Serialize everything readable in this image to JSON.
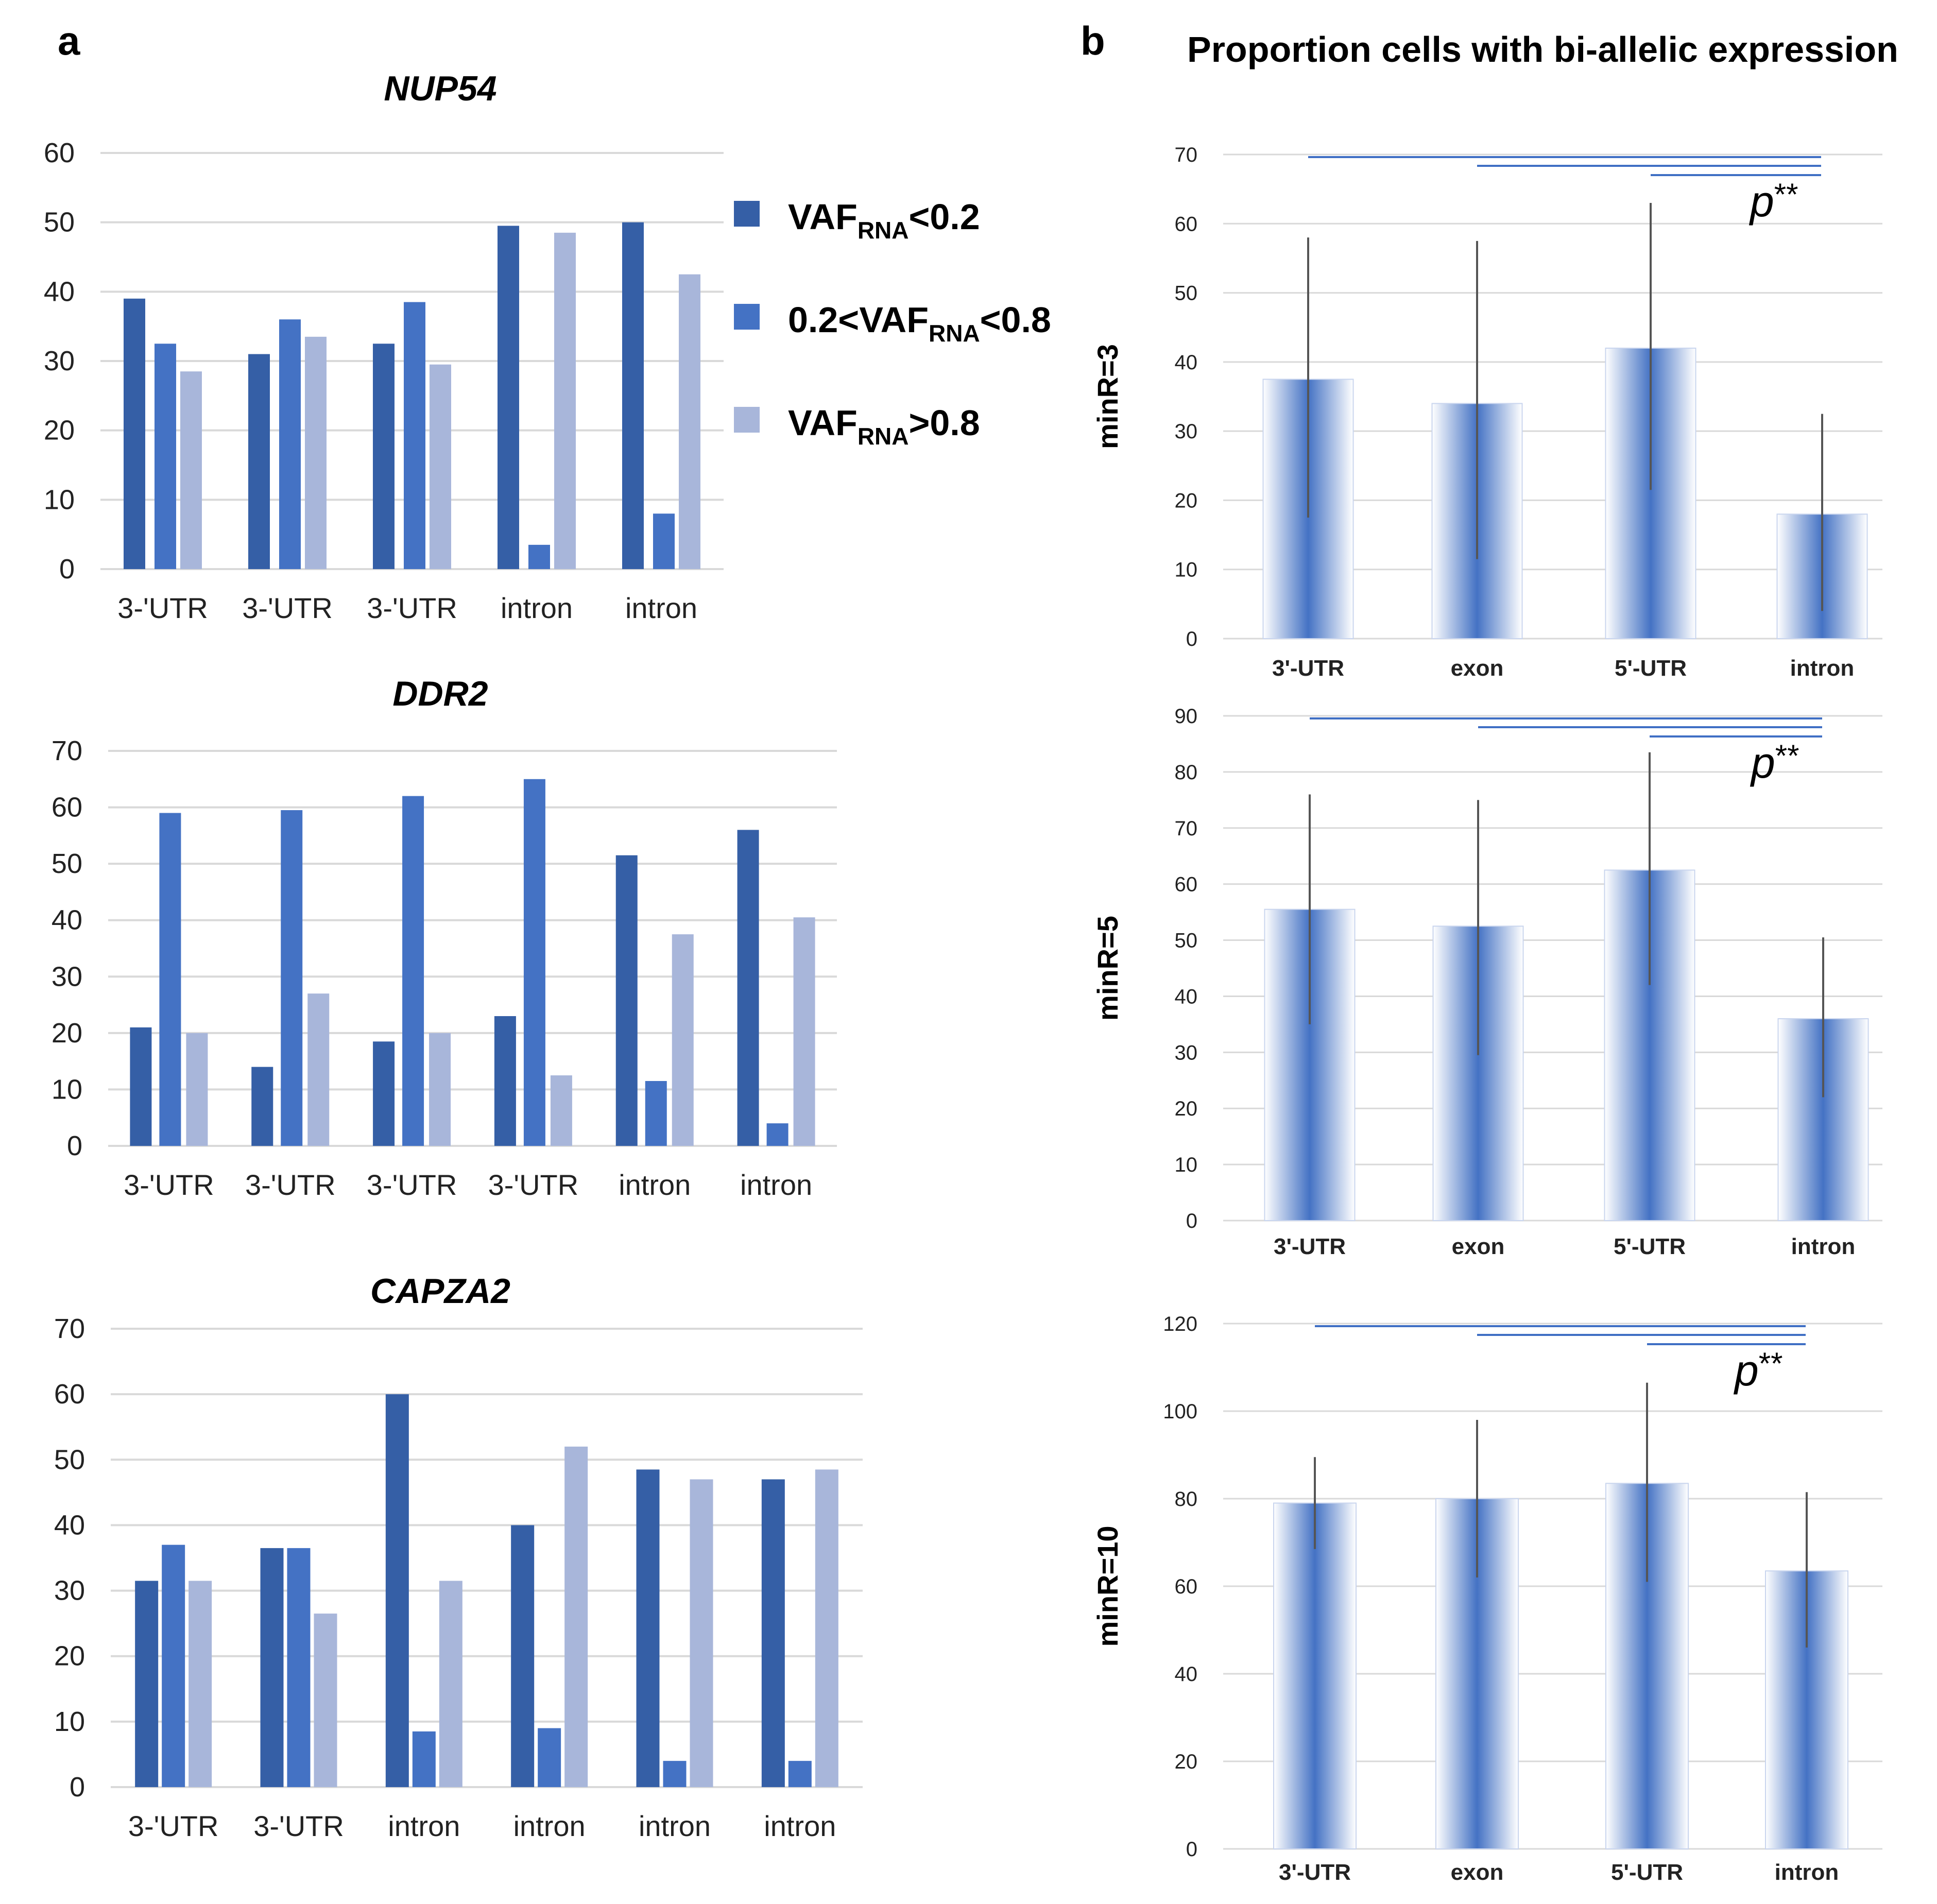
{
  "panel_a_label": "a",
  "panel_b_label": "b",
  "panel_b_title": "Proportion cells with bi-allelic expression",
  "legend": [
    {
      "pre": "VAF",
      "sub": "RNA",
      "post": "<0.2",
      "color": "#355fa6"
    },
    {
      "pre": "0.2<VAF",
      "sub": "RNA",
      "post": "<0.8",
      "color": "#4472c4"
    },
    {
      "pre": "VAF",
      "sub": "RNA",
      "post": ">0.8",
      "color": "#a8b6da"
    }
  ],
  "chart_data": [
    {
      "id": "nup54",
      "type": "bar",
      "title": "NUP54",
      "categories": [
        "3-'UTR",
        "3-'UTR",
        "3-'UTR",
        "intron",
        "intron"
      ],
      "ylim": [
        0,
        60
      ],
      "yticks": [
        0,
        10,
        20,
        30,
        40,
        50,
        60
      ],
      "series": [
        {
          "name": "VAFRNA<0.2",
          "color": "#355fa6",
          "values": [
            39,
            31,
            32.5,
            49.5,
            50
          ]
        },
        {
          "name": "0.2<VAFRNA<0.8",
          "color": "#4472c4",
          "values": [
            32.5,
            36,
            38.5,
            3.5,
            8
          ]
        },
        {
          "name": "VAFRNA>0.8",
          "color": "#a8b6da",
          "values": [
            28.5,
            33.5,
            29.5,
            48.5,
            42.5
          ]
        }
      ]
    },
    {
      "id": "ddr2",
      "type": "bar",
      "title": "DDR2",
      "categories": [
        "3-'UTR",
        "3-'UTR",
        "3-'UTR",
        "3-'UTR",
        "intron",
        "intron"
      ],
      "ylim": [
        0,
        70
      ],
      "yticks": [
        0,
        10,
        20,
        30,
        40,
        50,
        60,
        70
      ],
      "series": [
        {
          "name": "VAFRNA<0.2",
          "color": "#355fa6",
          "values": [
            21,
            14,
            18.5,
            23,
            51.5,
            56
          ]
        },
        {
          "name": "0.2<VAFRNA<0.8",
          "color": "#4472c4",
          "values": [
            59,
            59.5,
            62,
            65,
            11.5,
            4
          ]
        },
        {
          "name": "VAFRNA>0.8",
          "color": "#a8b6da",
          "values": [
            20,
            27,
            20,
            12.5,
            37.5,
            40.5
          ]
        }
      ]
    },
    {
      "id": "capza2",
      "type": "bar",
      "title": "CAPZA2",
      "categories": [
        "3-'UTR",
        "3-'UTR",
        "intron",
        "intron",
        "intron",
        "intron"
      ],
      "ylim": [
        0,
        70
      ],
      "yticks": [
        0,
        10,
        20,
        30,
        40,
        50,
        60,
        70
      ],
      "series": [
        {
          "name": "VAFRNA<0.2",
          "color": "#355fa6",
          "values": [
            31.5,
            36.5,
            60,
            40,
            48.5,
            47
          ]
        },
        {
          "name": "0.2<VAFRNA<0.8",
          "color": "#4472c4",
          "values": [
            37,
            36.5,
            8.5,
            9,
            4,
            4
          ]
        },
        {
          "name": "VAFRNA>0.8",
          "color": "#a8b6da",
          "values": [
            31.5,
            26.5,
            31.5,
            52,
            47,
            48.5
          ]
        }
      ]
    },
    {
      "id": "minr3",
      "type": "bar",
      "ylabel": "minR=3",
      "categories": [
        "3'-UTR",
        "exon",
        "5'-UTR",
        "intron"
      ],
      "ylim": [
        0,
        70
      ],
      "yticks": [
        0,
        10,
        20,
        30,
        40,
        50,
        60,
        70
      ],
      "values": [
        37.5,
        34,
        42,
        18
      ],
      "error_low": [
        17.5,
        11.5,
        21.5,
        4
      ],
      "error_high": [
        58,
        57.5,
        63,
        32.5
      ],
      "significance": "p**"
    },
    {
      "id": "minr5",
      "type": "bar",
      "ylabel": "minR=5",
      "categories": [
        "3'-UTR",
        "exon",
        "5'-UTR",
        "intron"
      ],
      "ylim": [
        0,
        90
      ],
      "yticks": [
        0,
        10,
        20,
        30,
        40,
        50,
        60,
        70,
        80,
        90
      ],
      "values": [
        55.5,
        52.5,
        62.5,
        36
      ],
      "error_low": [
        35,
        29.5,
        42,
        22
      ],
      "error_high": [
        76,
        75,
        83.5,
        50.5
      ],
      "significance": "p**"
    },
    {
      "id": "minr10",
      "type": "bar",
      "ylabel": "minR=10",
      "categories": [
        "3'-UTR",
        "exon",
        "5'-UTR",
        "intron"
      ],
      "ylim": [
        0,
        120
      ],
      "yticks": [
        0,
        20,
        40,
        60,
        80,
        100,
        120
      ],
      "values": [
        79,
        80,
        83.5,
        63.5
      ],
      "error_low": [
        68.5,
        62,
        61,
        46
      ],
      "error_high": [
        89.5,
        98,
        106.5,
        81.5
      ],
      "significance": "p**"
    }
  ]
}
